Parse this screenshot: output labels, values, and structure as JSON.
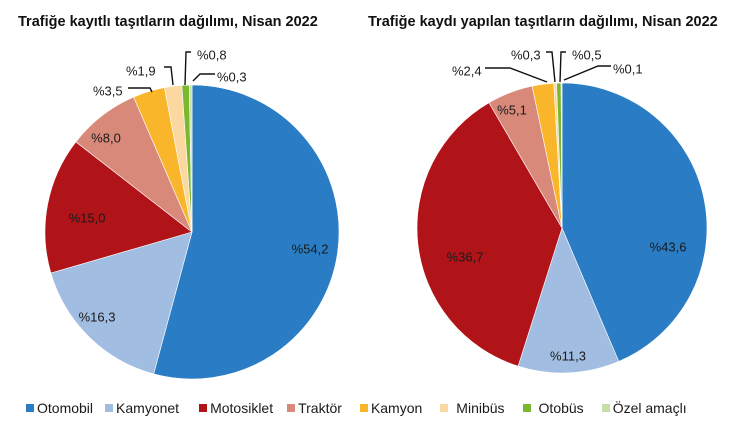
{
  "chart_data": [
    {
      "type": "pie",
      "title": "Trafiğe kayıtlı taşıtların dağılımı, Nisan 2022",
      "categories": [
        "Otomobil",
        "Kamyonet",
        "Motosiklet",
        "Traktör",
        "Kamyon",
        "Minibüs",
        "Otobüs",
        "Özel amaçlı"
      ],
      "values": [
        54.2,
        16.3,
        15.0,
        8.0,
        3.5,
        1.9,
        0.8,
        0.3
      ],
      "labels": [
        "%54,2",
        "%16,3",
        "%15,0",
        "%8,0",
        "%3,5",
        "%1,9",
        "%0,8",
        "%0,3"
      ],
      "unit": "%",
      "start_angle": "12 o'clock, clockwise",
      "legend_position": "bottom"
    },
    {
      "type": "pie",
      "title": "Trafiğe kaydı yapılan taşıtların dağılımı, Nisan 2022",
      "categories": [
        "Otomobil",
        "Kamyonet",
        "Motosiklet",
        "Traktör",
        "Kamyon",
        "Minibüs",
        "Otobüs",
        "Özel amaçlı"
      ],
      "values": [
        43.6,
        11.3,
        36.7,
        5.1,
        2.4,
        0.3,
        0.5,
        0.1
      ],
      "labels": [
        "%43,6",
        "%11,3",
        "%36,7",
        "%5,1",
        "%2,4",
        "%0,3",
        "%0,5",
        "%0,1"
      ],
      "unit": "%",
      "start_angle": "12 o'clock, clockwise",
      "legend_position": "bottom"
    }
  ],
  "titles": {
    "left": "Trafiğe kayıtlı taşıtların dağılımı, Nisan 2022",
    "right": "Trafiğe kaydı yapılan taşıtların dağılımı, Nisan 2022"
  },
  "colors": {
    "Otomobil": "#2a7dc4",
    "Kamyonet": "#a2bde2",
    "Motosiklet": "#b01418",
    "Traktör": "#d9897a",
    "Kamyon": "#f9b62a",
    "Minibüs": "#fbd8a0",
    "Otobüs": "#7cb82f",
    "Özel amaçlı": "#c5e0a5"
  },
  "legend": {
    "items": [
      {
        "label": "Otomobil",
        "color": "#2a7dc4"
      },
      {
        "label": "Kamyonet",
        "color": "#a2bde2"
      },
      {
        "label": "Motosiklet",
        "color": "#b01418"
      },
      {
        "label": "Traktör",
        "color": "#d9897a"
      },
      {
        "label": "Kamyon",
        "color": "#f9b62a"
      },
      {
        "label": "Minibüs",
        "color": "#fbd8a0"
      },
      {
        "label": "Otobüs",
        "color": "#7cb82f"
      },
      {
        "label": "Özel amaçlı",
        "color": "#c5e0a5"
      }
    ]
  }
}
